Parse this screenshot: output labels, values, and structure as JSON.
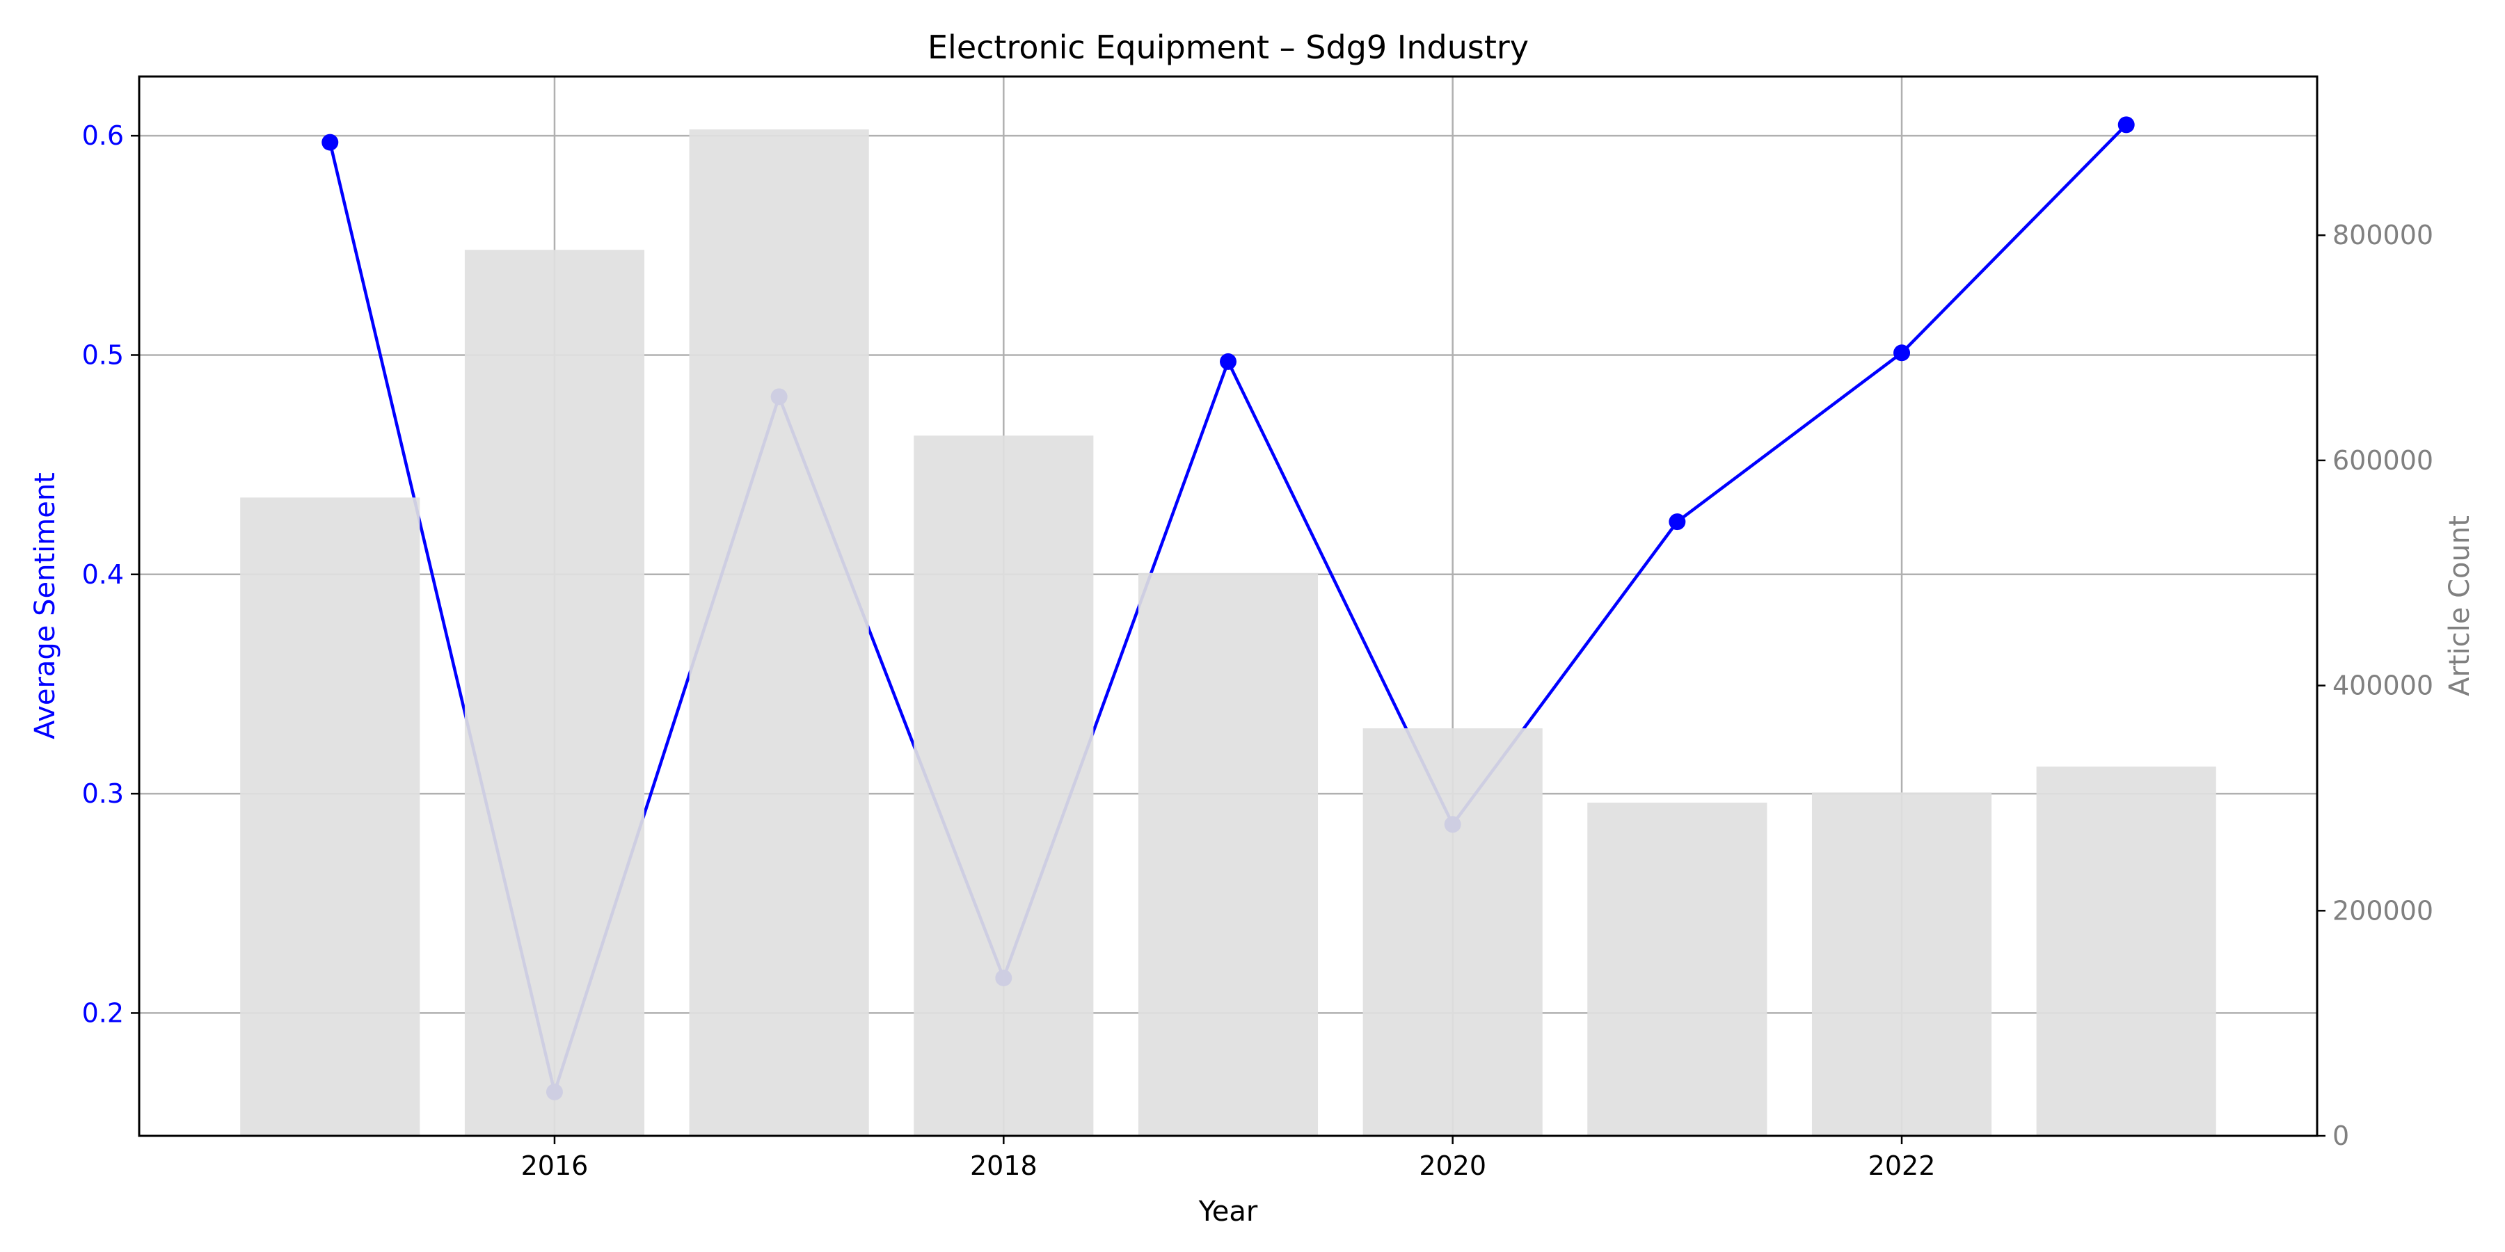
{
  "chart_data": {
    "type": "bar+line",
    "title": "Electronic Equipment – Sdg9 Industry",
    "xlabel": "Year",
    "ylabel_left": "Average Sentiment",
    "ylabel_right": "Article Count",
    "x": [
      2015,
      2016,
      2017,
      2018,
      2019,
      2020,
      2021,
      2022,
      2023
    ],
    "x_ticks": [
      2016,
      2018,
      2020,
      2022
    ],
    "xlim": [
      2014.15,
      2023.85
    ],
    "sentiment": [
      0.597,
      0.164,
      0.481,
      0.216,
      0.497,
      0.286,
      0.424,
      0.501,
      0.605
    ],
    "article_count": [
      567000,
      787000,
      894000,
      622000,
      500000,
      362000,
      296000,
      305000,
      328000
    ],
    "ylim_left": [
      0.144,
      0.627
    ],
    "yticks_left": [
      0.2,
      0.3,
      0.4,
      0.5,
      0.6
    ],
    "ylim_right": [
      0,
      941000
    ],
    "yticks_right": [
      0,
      200000,
      400000,
      600000,
      800000
    ],
    "grid": true,
    "colors": {
      "line": "#0000ff",
      "bar": "#dfdfdf",
      "grid": "#b0b0b0",
      "right_axis": "#808080"
    }
  }
}
